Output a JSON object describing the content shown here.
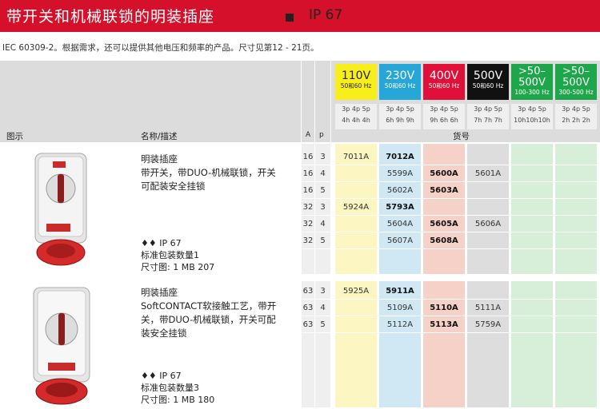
{
  "title": "带开关和机械联锁的明装插座",
  "ip_rating": "IP 67",
  "subtitle": "IEC 60309-2。根据需求，还可以提供其他电压和频率的产品。尺寸见第12 - 21页。",
  "header": {
    "figure": "图示",
    "name_desc": "名称/描述",
    "a": "A",
    "p": "p",
    "part_no": "货号"
  },
  "voltages": [
    {
      "main": "110V",
      "sub": "50和60 Hz",
      "color": "#f7ee1a",
      "poles": "3p 4p 5p",
      "hours": "4h 4h 4h"
    },
    {
      "main": "230V",
      "sub": "50和60 Hz",
      "color": "#27a7d8",
      "poles": "3p 4p 5p",
      "hours": "6h 9h 9h"
    },
    {
      "main": "400V",
      "sub": "50和60 Hz",
      "color": "#e0103a",
      "poles": "3p 4p 5p",
      "hours": "9h 6h 6h"
    },
    {
      "main": "500V",
      "sub": "50和60 Hz",
      "color": "#111111",
      "poles": "3p 4p 5p",
      "hours": "7h 7h 7h"
    },
    {
      "main": ">50–",
      "main2": "500V",
      "sub": "100-300 Hz",
      "color": "#1ea64a",
      "poles": "3p 4p 5p",
      "hours": "10h10h10h"
    },
    {
      "main": ">50–",
      "main2": "500V",
      "sub": "300-500 Hz",
      "color": "#1ea64a",
      "poles": "3p 4p 5p",
      "hours": "2h 2h 2h"
    }
  ],
  "col_colors": [
    "#fbf6c2",
    "#cfe8f4",
    "#f6d1c8",
    "#dddddd",
    "#d7eed9",
    "#d7eed9"
  ],
  "groups": [
    {
      "title": "明装插座",
      "desc": [
        "带开关，带DUO-机械联锁，开关",
        "可配装安全挂锁"
      ],
      "rating": "IP 67",
      "pack": "标准包装数量1",
      "dim": "尺寸图: 1 MB 207",
      "rows": [
        {
          "a": "16",
          "p": "3",
          "v110": "7011A",
          "v230": "7012A",
          "v400": "",
          "v500": ""
        },
        {
          "a": "16",
          "p": "4",
          "v110": "",
          "v230": "5599A",
          "v400": "5600A",
          "v500": "5601A"
        },
        {
          "a": "16",
          "p": "5",
          "v110": "",
          "v230": "5602A",
          "v400": "5603A",
          "v500": ""
        },
        {
          "a": "32",
          "p": "3",
          "v110": "5924A",
          "v230": "5793A",
          "v400": "",
          "v500": ""
        },
        {
          "a": "32",
          "p": "4",
          "v110": "",
          "v230": "5604A",
          "v400": "5605A",
          "v500": "5606A"
        },
        {
          "a": "32",
          "p": "5",
          "v110": "",
          "v230": "5607A",
          "v400": "5608A",
          "v500": ""
        }
      ]
    },
    {
      "title": "明装插座",
      "desc": [
        "SoftCONTACT软接触工艺，带开",
        "关，带DUO-机械联锁，开关可配",
        "装安全挂锁"
      ],
      "rating": "IP 67",
      "pack": "标准包装数量3",
      "dim": "尺寸图: 1 MB 180",
      "rows": [
        {
          "a": "63",
          "p": "3",
          "v110": "5925A",
          "v230": "5911A",
          "v400": "",
          "v500": ""
        },
        {
          "a": "63",
          "p": "4",
          "v110": "",
          "v230": "5109A",
          "v400": "5110A",
          "v500": "5111A"
        },
        {
          "a": "63",
          "p": "5",
          "v110": "",
          "v230": "5112A",
          "v400": "5113A",
          "v500": "5759A"
        }
      ]
    }
  ]
}
